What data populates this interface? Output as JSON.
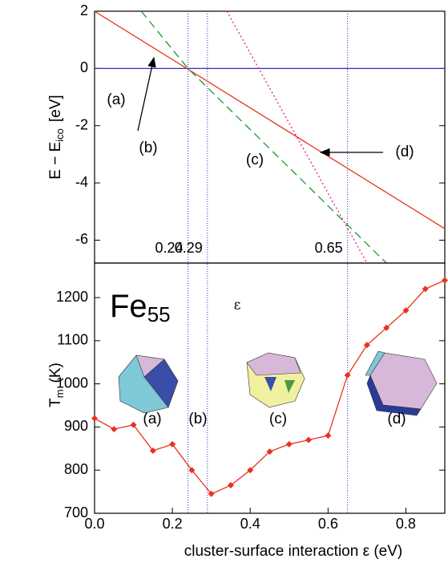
{
  "chart_data": [
    {
      "type": "line",
      "ylabel": "E − E",
      "ylabel_sub": "ico",
      "ylabel_unit": "[eV]",
      "xlim": [
        0,
        0.9
      ],
      "ylim": [
        -6.8,
        2
      ],
      "yticks": [
        2,
        0,
        -2,
        -4,
        -6
      ],
      "vlines": [
        0.24,
        0.29,
        0.65
      ],
      "hline": 0,
      "annotations": [
        "(a)",
        "(b)",
        "(c)",
        "(d)"
      ],
      "series": [
        {
          "color": "#e8321e",
          "dash": "none",
          "x": [
            0,
            0.9
          ],
          "values": [
            2,
            -5.6
          ]
        },
        {
          "color": "#1a9a2a",
          "dash": "10,6",
          "x": [
            0.12,
            0.24,
            0.75
          ],
          "values": [
            2,
            0,
            -6.8
          ]
        },
        {
          "color": "#e0208a",
          "dash": "2,3",
          "x": [
            0.34,
            0.7
          ],
          "values": [
            2,
            -6.8
          ]
        }
      ]
    },
    {
      "type": "line",
      "title": "Fe",
      "title_sub": "55",
      "symbol": "ε",
      "ylabel": "T",
      "ylabel_sub": "m",
      "ylabel_unit": "(K)",
      "xlabel": "cluster-surface interaction  ε (eV)",
      "xlim": [
        0,
        0.9
      ],
      "ylim": [
        700,
        1280
      ],
      "xticks": [
        {
          "value": 0,
          "label": "0.0"
        },
        0.2,
        0.4,
        0.6,
        0.8
      ],
      "yticks": [
        700,
        800,
        900,
        1000,
        1100,
        1200
      ],
      "annotations": [
        "(a)",
        "(b)",
        "(c)",
        "(d)"
      ],
      "series": [
        {
          "color": "#e8321e",
          "x": [
            0,
            0.05,
            0.1,
            0.15,
            0.2,
            0.25,
            0.3,
            0.35,
            0.4,
            0.45,
            0.5,
            0.55,
            0.6,
            0.65,
            0.7,
            0.75,
            0.8,
            0.85,
            0.9
          ],
          "values": [
            920,
            895,
            905,
            845,
            860,
            800,
            745,
            765,
            800,
            843,
            860,
            870,
            880,
            1020,
            1090,
            1130,
            1170,
            1220,
            1240
          ]
        }
      ]
    }
  ]
}
